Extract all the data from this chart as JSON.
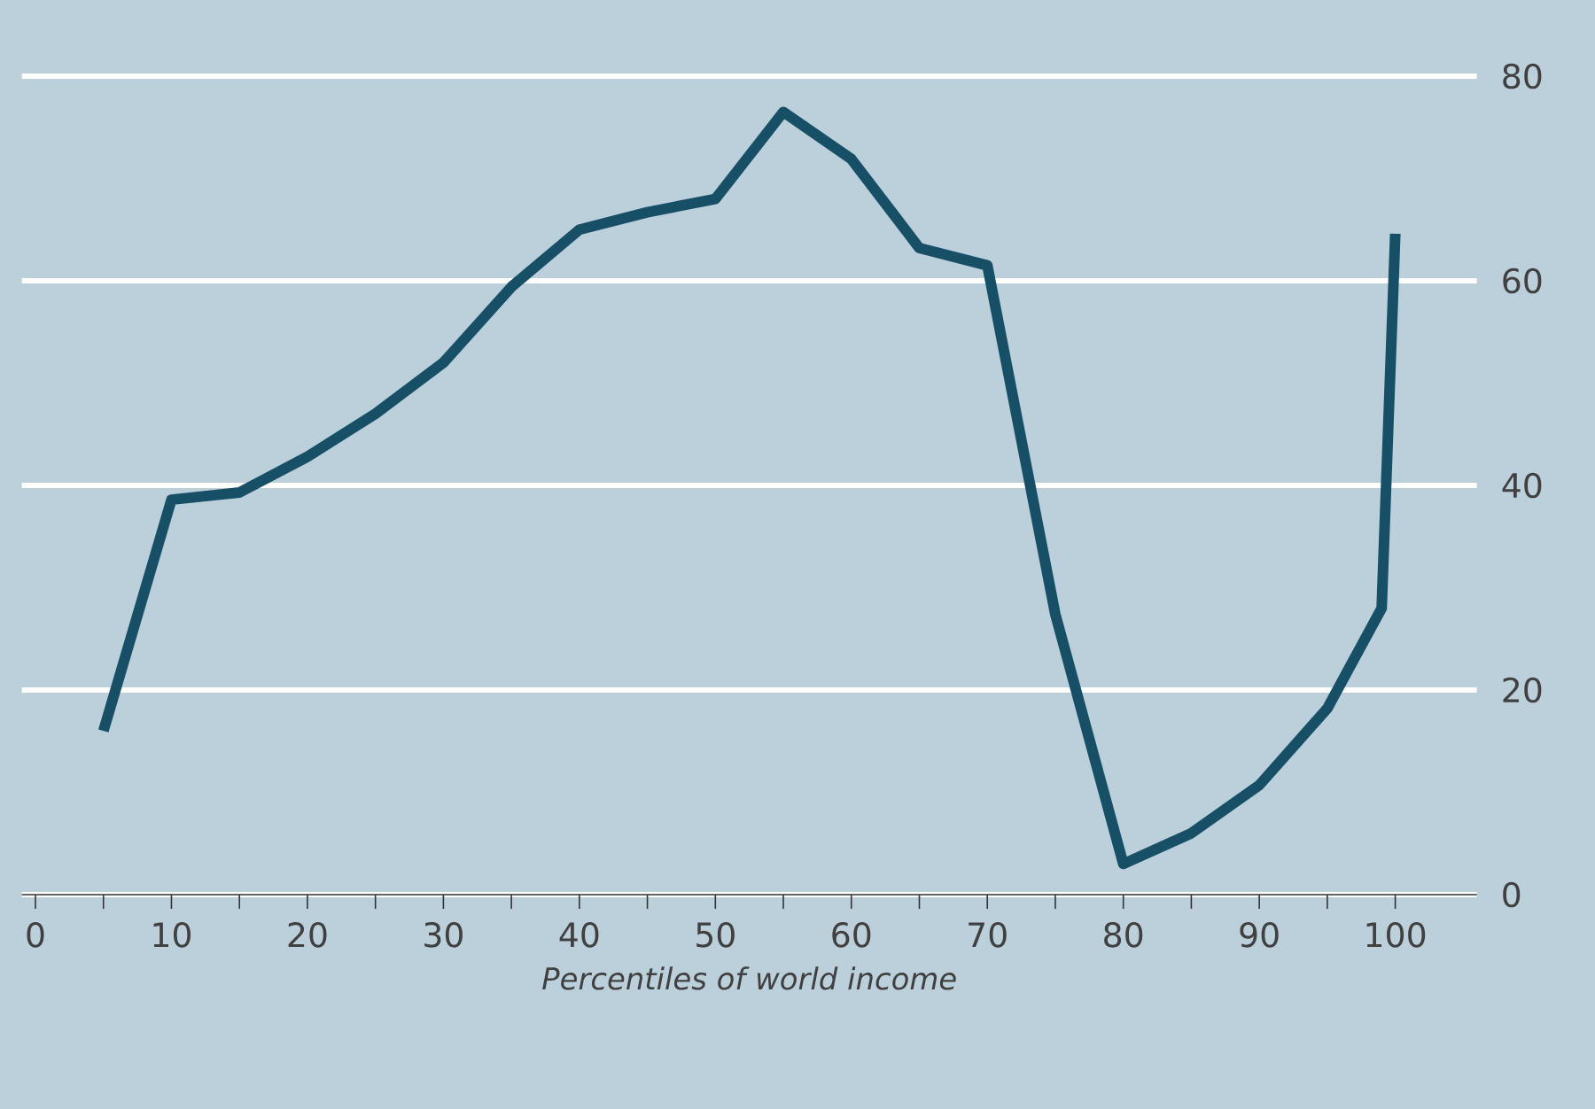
{
  "chart_data": {
    "type": "line",
    "xlabel": "Percentiles of world income",
    "x": [
      5,
      10,
      15,
      20,
      25,
      30,
      35,
      40,
      45,
      50,
      55,
      60,
      65,
      70,
      75,
      80,
      85,
      90,
      95,
      99,
      100
    ],
    "series": [
      {
        "color": "#174f66",
        "values": [
          16,
          38.6,
          39.3,
          42.8,
          47,
          52,
          59.4,
          65,
          66.7,
          68,
          76.5,
          71.9,
          63.2,
          61.5,
          27.4,
          3,
          6,
          10.7,
          18.2,
          28,
          64.6
        ]
      }
    ],
    "xlim": [
      -1,
      106
    ],
    "ylim": [
      0,
      80
    ],
    "xticks": [
      0,
      {
        "value": 5,
        "label": null
      },
      10,
      {
        "value": 15,
        "label": null
      },
      20,
      {
        "value": 25,
        "label": null
      },
      30,
      {
        "value": 35,
        "label": null
      },
      40,
      {
        "value": 45,
        "label": null
      },
      50,
      {
        "value": 55,
        "label": null
      },
      60,
      {
        "value": 65,
        "label": null
      },
      70,
      {
        "value": 75,
        "label": null
      },
      80,
      {
        "value": 85,
        "label": null
      },
      90,
      {
        "value": 95,
        "label": null
      },
      100
    ],
    "yticks": [
      0,
      20,
      40,
      60,
      80
    ],
    "grid": "y",
    "marker": "none",
    "line_style": "solid"
  }
}
